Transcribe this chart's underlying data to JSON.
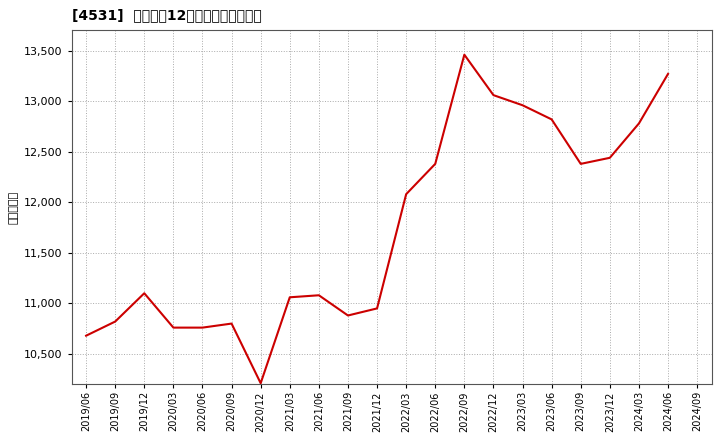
{
  "title": "[4531]  売上高の12か月移動合計の推移",
  "ylabel": "（百万円）",
  "line_color": "#cc0000",
  "background_color": "#ffffff",
  "plot_bg_color": "#ffffff",
  "grid_color": "#aaaaaa",
  "ylim": [
    10200,
    13700
  ],
  "yticks": [
    10500,
    11000,
    11500,
    12000,
    12500,
    13000,
    13500
  ],
  "dates": [
    "2019/06",
    "2019/09",
    "2019/12",
    "2020/03",
    "2020/06",
    "2020/09",
    "2020/12",
    "2021/03",
    "2021/06",
    "2021/09",
    "2021/12",
    "2022/03",
    "2022/06",
    "2022/09",
    "2022/12",
    "2023/03",
    "2023/06",
    "2023/09",
    "2023/12",
    "2024/03",
    "2024/06",
    "2024/09"
  ],
  "values": [
    10680,
    10820,
    11100,
    10760,
    10760,
    10800,
    10210,
    11060,
    11080,
    10880,
    10950,
    12080,
    12380,
    13460,
    13060,
    12960,
    12820,
    12380,
    12440,
    12780,
    13270,
    null
  ],
  "xtick_labels": [
    "2019/06",
    "2019/09",
    "2019/12",
    "2020/03",
    "2020/06",
    "2020/09",
    "2020/12",
    "2021/03",
    "2021/06",
    "2021/09",
    "2021/12",
    "2022/03",
    "2022/06",
    "2022/09",
    "2022/12",
    "2023/03",
    "2023/06",
    "2023/09",
    "2023/12",
    "2024/03",
    "2024/06",
    "2024/09"
  ]
}
